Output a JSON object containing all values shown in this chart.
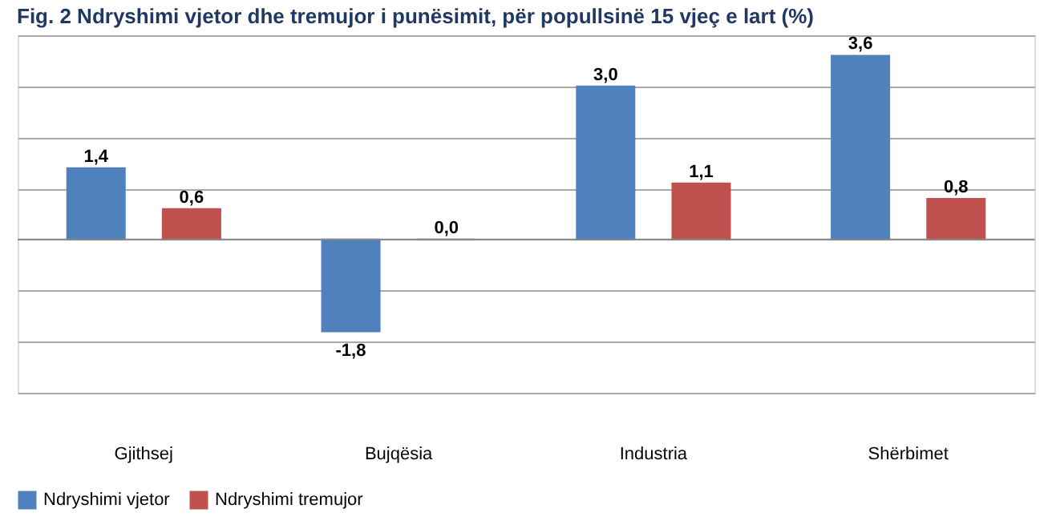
{
  "chart_data": {
    "type": "bar",
    "title": "Fig. 2 Ndryshimi vjetor dhe tremujor i punësimit, për popullsinë 15 vjeç e lart (%)",
    "categories": [
      "Gjithsej",
      "Bujqësia",
      "Industria",
      "Shërbimet"
    ],
    "series": [
      {
        "name": "Ndryshimi vjetor",
        "color": "#4f81bd",
        "values": [
          1.4,
          -1.8,
          3.0,
          3.6
        ],
        "value_labels": [
          "1,4",
          "-1,8",
          "3,0",
          "3,6"
        ]
      },
      {
        "name": "Ndryshimi tremujor",
        "color": "#c0504d",
        "values": [
          0.6,
          0.0,
          1.1,
          0.8
        ],
        "value_labels": [
          "0,6",
          "0,0",
          "1,1",
          "0,8"
        ]
      }
    ],
    "ylim": [
      -3,
      4
    ],
    "yticks": [
      {
        "value": -3,
        "label": null
      },
      {
        "value": -2,
        "label": null
      },
      {
        "value": -1,
        "label": null
      },
      {
        "value": 0,
        "label": null
      },
      {
        "value": 1,
        "label": null
      },
      {
        "value": 2,
        "label": null
      },
      {
        "value": 3,
        "label": null
      },
      {
        "value": 4,
        "label": null
      }
    ],
    "tick_labels": "x",
    "grid": "y",
    "legend": "bottom"
  }
}
